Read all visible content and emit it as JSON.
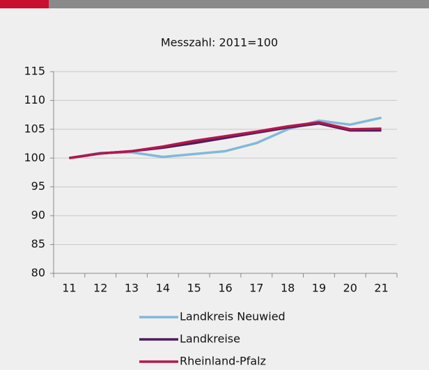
{
  "chart_data": {
    "type": "line",
    "title": "Messzahl: 2011=100",
    "categories": [
      "11",
      "12",
      "13",
      "14",
      "15",
      "16",
      "17",
      "18",
      "19",
      "20",
      "21"
    ],
    "series": [
      {
        "name": "Landkreis Neuwied",
        "color": "#80b9d9",
        "values": [
          100,
          100.9,
          101.0,
          100.2,
          100.7,
          101.2,
          102.6,
          105.0,
          106.5,
          105.8,
          107.0
        ]
      },
      {
        "name": "Landkreise",
        "color": "#4a1f5c",
        "values": [
          100,
          100.8,
          101.2,
          101.8,
          102.6,
          103.5,
          104.4,
          105.3,
          106.0,
          104.8,
          104.8
        ]
      },
      {
        "name": "Rheinland-Pfalz",
        "color": "#b5164d",
        "values": [
          100,
          100.8,
          101.2,
          102.0,
          103.0,
          103.8,
          104.6,
          105.5,
          106.2,
          105.0,
          105.1
        ]
      }
    ],
    "ylim": [
      80,
      115
    ],
    "yticks": [
      80,
      85,
      90,
      95,
      100,
      105,
      110,
      115
    ],
    "grid": true
  }
}
